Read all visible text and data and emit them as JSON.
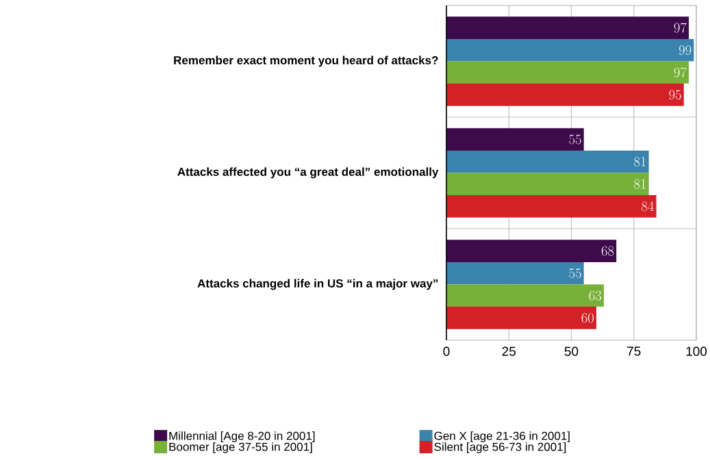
{
  "chart_data": {
    "type": "bar",
    "orientation": "horizontal",
    "categories": [
      "Remember exact moment you heard of attacks?",
      "Attacks affected you “a great deal” emotionally",
      "Attacks changed life in US “in a major way”"
    ],
    "series": [
      {
        "name": "Millennial [Age 8-20 in 2001]",
        "color": "#3d0a4a",
        "values": [
          97,
          55,
          68
        ]
      },
      {
        "name": "Gen X [age 21-36 in 2001]",
        "color": "#3a83ad",
        "values": [
          99,
          81,
          55
        ]
      },
      {
        "name": "Boomer [age 37-55 in 2001]",
        "color": "#77b13a",
        "values": [
          97,
          81,
          63
        ]
      },
      {
        "name": "Silent [age 56-73 in 2001]",
        "color": "#d42027",
        "values": [
          95,
          84,
          60
        ]
      }
    ],
    "xlim": [
      0,
      100
    ],
    "xticks": [
      0,
      25,
      50,
      75,
      100
    ],
    "grid": true,
    "legend": "bottom",
    "data_labels": true
  }
}
